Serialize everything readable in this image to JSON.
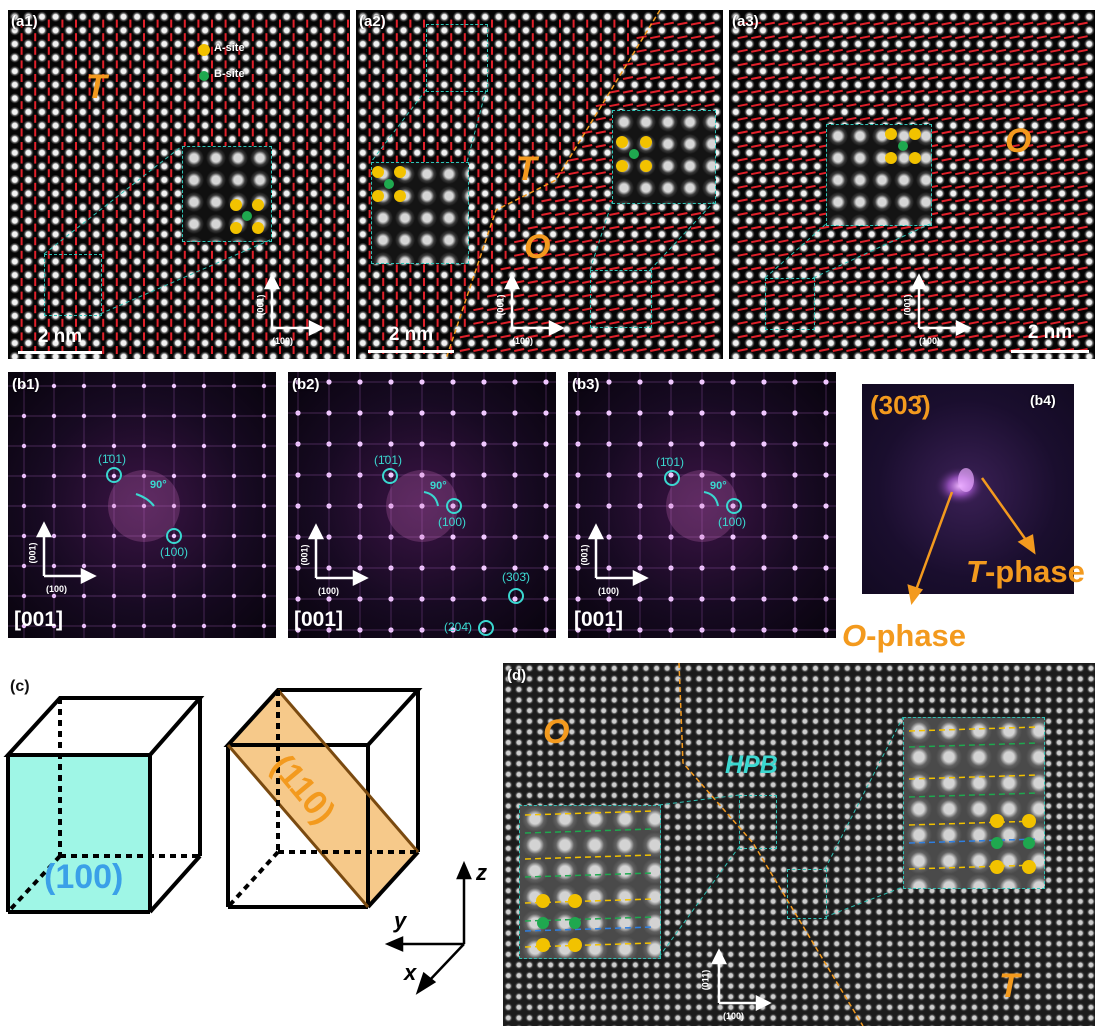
{
  "panels": {
    "a1": {
      "label": "(a1)",
      "phase": "T",
      "scale": "2 nm",
      "axis_v": "(001)",
      "axis_h": "(100)",
      "legend_a": "A-site",
      "legend_b": "B-site"
    },
    "a2": {
      "label": "(a2)",
      "phase_t": "T",
      "phase_o": "O",
      "scale": "2 nm",
      "axis_v": "(001)",
      "axis_h": "(100)"
    },
    "a3": {
      "label": "(a3)",
      "phase": "O",
      "scale": "2 nm",
      "axis_v": "(001)",
      "axis_h": "(100)"
    },
    "b1": {
      "label": "(b1)",
      "spot1": "(1̄01)",
      "spot2": "(100)",
      "angle": "90°",
      "zone": "[001]",
      "axis_v": "(001)",
      "axis_h": "(100)"
    },
    "b2": {
      "label": "(b2)",
      "spot1": "(1̄01)",
      "spot2": "(100)",
      "spot3": "(303̄)",
      "spot4": "(204̄)",
      "angle": "90°",
      "zone": "[001]",
      "axis_v": "(001)",
      "axis_h": "(100)"
    },
    "b3": {
      "label": "(b3)",
      "spot1": "(1̄01)",
      "spot2": "(100)",
      "angle": "90°",
      "zone": "[001]",
      "axis_v": "(001)",
      "axis_h": "(100)"
    },
    "b4": {
      "label": "(b4)",
      "plane": "(303̄)",
      "t_phase_italic": "T",
      "t_phase_rest": "-phase",
      "o_phase_italic": "O",
      "o_phase_rest": "-phase"
    },
    "c": {
      "label": "(c)",
      "plane1": "(100)",
      "plane2": "(110)",
      "axis_z": "z",
      "axis_y": "y",
      "axis_x": "x"
    },
    "d": {
      "label": "(d)",
      "phase_o": "O",
      "phase_t": "T",
      "boundary": "HPB",
      "axis_v": "(011)",
      "axis_h": "(100)"
    }
  },
  "colors": {
    "phase": "#f39a1e",
    "cyan": "#2fc3b6",
    "a_site": "#f2c200",
    "b_site": "#1fa84f",
    "cube_100": "#9ff6e6",
    "plane_110": "#f6c98a",
    "dipole": "#e0202a"
  }
}
